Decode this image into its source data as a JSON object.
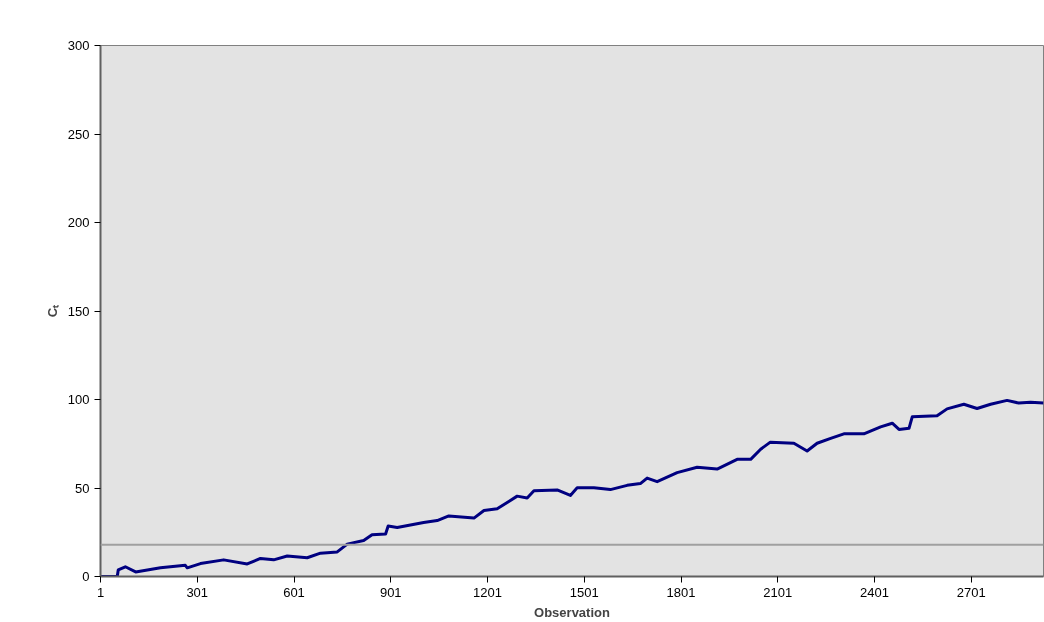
{
  "chart_data": {
    "type": "line",
    "xlabel": "Observation",
    "ylabel": "Cₜ",
    "xlim": [
      1,
      2925
    ],
    "ylim": [
      0,
      300
    ],
    "xticks": [
      1,
      301,
      601,
      901,
      1201,
      1501,
      1801,
      2101,
      2401,
      2701
    ],
    "yticks": [
      0,
      50,
      100,
      150,
      200,
      250,
      300
    ],
    "grid": false,
    "ref_lines": [
      {
        "axis": "y",
        "value": 18,
        "color": "#a0a0a0"
      }
    ],
    "series": [
      {
        "color": "#000080",
        "x": [
          1,
          53,
          56,
          78,
          110,
          187,
          264,
          270,
          311,
          383,
          456,
          497,
          538,
          580,
          642,
          683,
          735,
          766,
          817,
          843,
          885,
          893,
          921,
          1003,
          1045,
          1081,
          1159,
          1190,
          1231,
          1293,
          1324,
          1345,
          1417,
          1458,
          1479,
          1531,
          1582,
          1634,
          1675,
          1696,
          1727,
          1789,
          1851,
          1913,
          1975,
          2017,
          2048,
          2078,
          2151,
          2192,
          2223,
          2265,
          2306,
          2368,
          2420,
          2456,
          2477,
          2508,
          2518,
          2595,
          2626,
          2678,
          2719,
          2761,
          2812,
          2848,
          2885,
          2925
        ],
        "values": [
          0,
          0,
          3.7,
          5.5,
          2.6,
          5,
          6.3,
          4.9,
          7.3,
          9.4,
          7.1,
          10.2,
          9.4,
          11.6,
          10.6,
          13.2,
          13.9,
          18.3,
          20.3,
          23.6,
          24,
          28.5,
          27.7,
          30.5,
          31.6,
          34.2,
          33,
          37.3,
          38.3,
          45.4,
          44.4,
          48.5,
          48.9,
          45.8,
          50.1,
          50.1,
          49.1,
          51.5,
          52.5,
          55.6,
          53.6,
          58.7,
          61.7,
          60.7,
          66.2,
          66.2,
          71.9,
          75.9,
          75.3,
          70.9,
          75.3,
          78,
          80.6,
          80.6,
          84.5,
          86.6,
          83.1,
          83.7,
          90.2,
          90.8,
          94.7,
          97.3,
          94.9,
          97.3,
          99.5,
          98,
          98.5,
          98
        ]
      }
    ]
  }
}
